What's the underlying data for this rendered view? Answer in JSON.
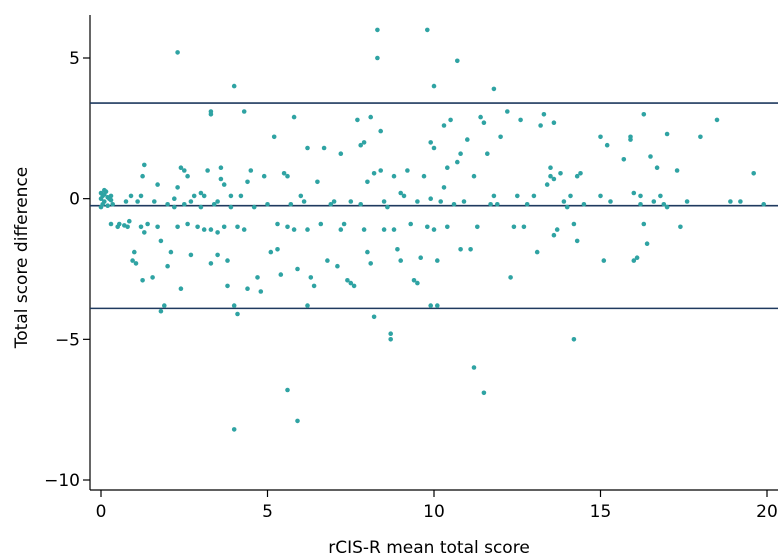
{
  "chart_data": {
    "type": "scatter",
    "title": "",
    "xlabel": "rCIS-R mean total score",
    "ylabel": "Total score difference",
    "xlim": [
      0,
      20
    ],
    "ylim": [
      -10.5,
      6
    ],
    "x_ticks": [
      0,
      5,
      10,
      15,
      20
    ],
    "y_ticks": [
      5,
      0,
      -5,
      -10
    ],
    "x_tick_labels": [
      "0",
      "5",
      "10",
      "15",
      "20"
    ],
    "y_tick_labels": [
      "5",
      "0",
      "−5",
      "−10"
    ],
    "grid": false,
    "legend": "none",
    "point_color": "#2fa3a3",
    "reference_line_color": "#1f3a5f",
    "reference_lines": [
      {
        "name": "upper limit of agreement",
        "y": 3.4
      },
      {
        "name": "mean difference",
        "y": -0.25
      },
      {
        "name": "lower limit of agreement",
        "y": -3.9
      }
    ],
    "points": [
      [
        0.0,
        0.2
      ],
      [
        0.05,
        0.1
      ],
      [
        0.0,
        0.0
      ],
      [
        0.1,
        -0.1
      ],
      [
        0.0,
        -0.3
      ],
      [
        0.15,
        0.25
      ],
      [
        0.05,
        -0.2
      ],
      [
        0.1,
        0.3
      ],
      [
        0.2,
        0.05
      ],
      [
        0.2,
        -0.25
      ],
      [
        0.3,
        0.1
      ],
      [
        0.25,
        0.0
      ],
      [
        0.35,
        -0.2
      ],
      [
        0.1,
        0.15
      ],
      [
        0.3,
        -0.05
      ],
      [
        0.3,
        -0.9
      ],
      [
        0.5,
        -1.0
      ],
      [
        0.55,
        -0.9
      ],
      [
        0.7,
        -0.95
      ],
      [
        0.8,
        -1.0
      ],
      [
        0.85,
        -0.8
      ],
      [
        0.75,
        -0.1
      ],
      [
        0.9,
        0.1
      ],
      [
        0.95,
        -2.2
      ],
      [
        1.0,
        -1.9
      ],
      [
        1.05,
        -2.3
      ],
      [
        1.1,
        -0.1
      ],
      [
        1.2,
        0.1
      ],
      [
        1.25,
        0.8
      ],
      [
        1.3,
        1.2
      ],
      [
        1.2,
        -1.0
      ],
      [
        1.3,
        -1.2
      ],
      [
        1.4,
        -0.9
      ],
      [
        1.25,
        -2.9
      ],
      [
        1.55,
        -2.8
      ],
      [
        1.6,
        -0.1
      ],
      [
        1.7,
        0.5
      ],
      [
        1.7,
        -1.0
      ],
      [
        1.8,
        -1.5
      ],
      [
        1.8,
        -4.0
      ],
      [
        1.9,
        -3.8
      ],
      [
        2.0,
        -0.2
      ],
      [
        2.0,
        -2.4
      ],
      [
        2.1,
        -1.9
      ],
      [
        2.2,
        0.0
      ],
      [
        2.2,
        -0.3
      ],
      [
        2.3,
        0.4
      ],
      [
        2.3,
        -1.0
      ],
      [
        2.4,
        1.1
      ],
      [
        2.5,
        1.0
      ],
      [
        2.6,
        0.8
      ],
      [
        2.6,
        -0.9
      ],
      [
        2.7,
        -0.1
      ],
      [
        2.7,
        -2.0
      ],
      [
        2.8,
        0.1
      ],
      [
        2.3,
        5.2
      ],
      [
        2.4,
        -3.2
      ],
      [
        2.5,
        -0.2
      ],
      [
        2.9,
        -1.0
      ],
      [
        3.0,
        0.2
      ],
      [
        3.1,
        0.1
      ],
      [
        3.0,
        -0.3
      ],
      [
        3.1,
        -1.1
      ],
      [
        3.2,
        1.0
      ],
      [
        3.3,
        3.0
      ],
      [
        3.3,
        3.1
      ],
      [
        3.3,
        -1.1
      ],
      [
        3.3,
        -2.3
      ],
      [
        3.4,
        -0.2
      ],
      [
        3.5,
        -0.1
      ],
      [
        3.5,
        -1.2
      ],
      [
        3.6,
        0.7
      ],
      [
        3.6,
        1.1
      ],
      [
        3.7,
        0.5
      ],
      [
        3.7,
        -1.0
      ],
      [
        3.8,
        -2.2
      ],
      [
        3.8,
        -3.1
      ],
      [
        3.9,
        0.1
      ],
      [
        3.9,
        -0.3
      ],
      [
        4.0,
        4.0
      ],
      [
        4.0,
        -3.8
      ],
      [
        4.1,
        -4.1
      ],
      [
        4.1,
        -1.0
      ],
      [
        4.2,
        0.1
      ],
      [
        4.3,
        3.1
      ],
      [
        4.3,
        -1.1
      ],
      [
        4.4,
        -3.2
      ],
      [
        4.4,
        0.6
      ],
      [
        4.5,
        1.0
      ],
      [
        4.6,
        -0.3
      ],
      [
        4.7,
        -2.8
      ],
      [
        4.8,
        -3.3
      ],
      [
        4.9,
        0.8
      ],
      [
        4.0,
        -8.2
      ],
      [
        3.5,
        -2.0
      ],
      [
        5.0,
        -0.2
      ],
      [
        5.1,
        -1.9
      ],
      [
        5.2,
        2.2
      ],
      [
        5.3,
        -1.8
      ],
      [
        5.3,
        -0.9
      ],
      [
        5.4,
        -2.7
      ],
      [
        5.5,
        0.9
      ],
      [
        5.6,
        0.8
      ],
      [
        5.6,
        -1.0
      ],
      [
        5.7,
        -0.2
      ],
      [
        5.6,
        -6.8
      ],
      [
        5.8,
        2.9
      ],
      [
        5.8,
        -1.1
      ],
      [
        5.9,
        -2.5
      ],
      [
        5.9,
        -7.9
      ],
      [
        6.0,
        0.1
      ],
      [
        6.1,
        -0.1
      ],
      [
        6.2,
        1.8
      ],
      [
        6.2,
        -1.1
      ],
      [
        6.3,
        -2.8
      ],
      [
        6.4,
        -3.1
      ],
      [
        6.2,
        -3.8
      ],
      [
        6.5,
        0.6
      ],
      [
        6.6,
        -0.9
      ],
      [
        6.7,
        1.8
      ],
      [
        6.8,
        -2.2
      ],
      [
        6.9,
        -0.2
      ],
      [
        7.0,
        -0.1
      ],
      [
        7.1,
        -2.4
      ],
      [
        7.2,
        1.6
      ],
      [
        7.2,
        -1.1
      ],
      [
        7.3,
        -0.9
      ],
      [
        7.4,
        -2.9
      ],
      [
        7.5,
        -0.1
      ],
      [
        7.5,
        -3.0
      ],
      [
        7.6,
        -3.1
      ],
      [
        7.7,
        2.8
      ],
      [
        7.8,
        1.9
      ],
      [
        7.8,
        -0.2
      ],
      [
        7.9,
        2.0
      ],
      [
        7.9,
        -1.1
      ],
      [
        8.0,
        0.6
      ],
      [
        8.0,
        -1.9
      ],
      [
        8.1,
        2.9
      ],
      [
        8.1,
        -2.3
      ],
      [
        8.2,
        0.9
      ],
      [
        8.2,
        -4.2
      ],
      [
        8.3,
        6.0
      ],
      [
        8.3,
        5.0
      ],
      [
        8.4,
        2.4
      ],
      [
        8.4,
        1.0
      ],
      [
        8.5,
        -0.1
      ],
      [
        8.5,
        -1.1
      ],
      [
        8.6,
        -0.3
      ],
      [
        8.7,
        -4.8
      ],
      [
        8.7,
        -5.0
      ],
      [
        8.8,
        0.8
      ],
      [
        8.8,
        -1.1
      ],
      [
        8.9,
        -1.8
      ],
      [
        9.0,
        0.2
      ],
      [
        9.0,
        -2.2
      ],
      [
        9.1,
        0.1
      ],
      [
        9.2,
        1.0
      ],
      [
        9.3,
        -0.9
      ],
      [
        9.4,
        -2.9
      ],
      [
        9.5,
        -0.1
      ],
      [
        9.5,
        -3.0
      ],
      [
        9.6,
        -2.1
      ],
      [
        9.7,
        0.8
      ],
      [
        9.8,
        -1.0
      ],
      [
        9.9,
        2.0
      ],
      [
        9.9,
        -3.8
      ],
      [
        9.9,
        0.0
      ],
      [
        9.8,
        6.0
      ],
      [
        10.0,
        4.0
      ],
      [
        10.0,
        1.8
      ],
      [
        10.0,
        -1.1
      ],
      [
        10.1,
        -2.2
      ],
      [
        10.1,
        -3.8
      ],
      [
        10.2,
        -0.1
      ],
      [
        10.3,
        2.6
      ],
      [
        10.3,
        0.4
      ],
      [
        10.4,
        -1.0
      ],
      [
        10.4,
        1.1
      ],
      [
        10.5,
        2.8
      ],
      [
        10.6,
        -0.2
      ],
      [
        10.7,
        4.9
      ],
      [
        10.7,
        1.3
      ],
      [
        10.8,
        1.6
      ],
      [
        10.8,
        -1.8
      ],
      [
        10.9,
        -0.1
      ],
      [
        11.0,
        2.1
      ],
      [
        11.1,
        -1.8
      ],
      [
        11.2,
        -6.0
      ],
      [
        11.2,
        0.8
      ],
      [
        11.3,
        -1.0
      ],
      [
        11.4,
        2.9
      ],
      [
        11.5,
        -6.9
      ],
      [
        11.5,
        2.7
      ],
      [
        11.6,
        1.6
      ],
      [
        11.7,
        -0.2
      ],
      [
        11.8,
        3.9
      ],
      [
        11.8,
        0.1
      ],
      [
        11.9,
        -0.2
      ],
      [
        12.0,
        2.2
      ],
      [
        12.2,
        3.1
      ],
      [
        12.3,
        -2.8
      ],
      [
        12.4,
        -1.0
      ],
      [
        12.5,
        0.1
      ],
      [
        12.6,
        2.8
      ],
      [
        12.7,
        -1.0
      ],
      [
        12.8,
        -0.2
      ],
      [
        13.0,
        0.1
      ],
      [
        13.1,
        -1.9
      ],
      [
        13.2,
        2.6
      ],
      [
        13.3,
        3.0
      ],
      [
        13.4,
        0.5
      ],
      [
        13.5,
        1.1
      ],
      [
        13.5,
        0.8
      ],
      [
        13.6,
        0.7
      ],
      [
        13.6,
        -1.3
      ],
      [
        13.6,
        2.7
      ],
      [
        13.7,
        -1.1
      ],
      [
        13.8,
        0.9
      ],
      [
        13.9,
        -0.1
      ],
      [
        14.0,
        -0.3
      ],
      [
        14.1,
        0.1
      ],
      [
        14.2,
        -0.9
      ],
      [
        14.2,
        -5.0
      ],
      [
        14.3,
        0.8
      ],
      [
        14.3,
        -1.5
      ],
      [
        14.4,
        0.9
      ],
      [
        14.5,
        -0.2
      ],
      [
        15.0,
        0.1
      ],
      [
        15.0,
        2.2
      ],
      [
        15.1,
        -2.2
      ],
      [
        15.2,
        1.9
      ],
      [
        15.3,
        -0.1
      ],
      [
        15.7,
        1.4
      ],
      [
        15.9,
        2.2
      ],
      [
        15.9,
        2.1
      ],
      [
        16.0,
        0.2
      ],
      [
        16.0,
        -2.2
      ],
      [
        16.1,
        -2.1
      ],
      [
        16.2,
        0.1
      ],
      [
        16.2,
        -0.2
      ],
      [
        16.3,
        3.0
      ],
      [
        16.3,
        -0.9
      ],
      [
        16.4,
        -1.6
      ],
      [
        16.5,
        1.5
      ],
      [
        16.6,
        -0.1
      ],
      [
        16.7,
        1.1
      ],
      [
        16.8,
        0.1
      ],
      [
        16.9,
        -0.2
      ],
      [
        17.0,
        2.3
      ],
      [
        17.0,
        -0.3
      ],
      [
        17.3,
        1.0
      ],
      [
        17.4,
        -1.0
      ],
      [
        17.6,
        -0.1
      ],
      [
        18.0,
        2.2
      ],
      [
        18.5,
        2.8
      ],
      [
        18.9,
        -0.1
      ],
      [
        19.2,
        -0.1
      ],
      [
        19.6,
        0.9
      ],
      [
        19.9,
        -0.2
      ]
    ]
  }
}
